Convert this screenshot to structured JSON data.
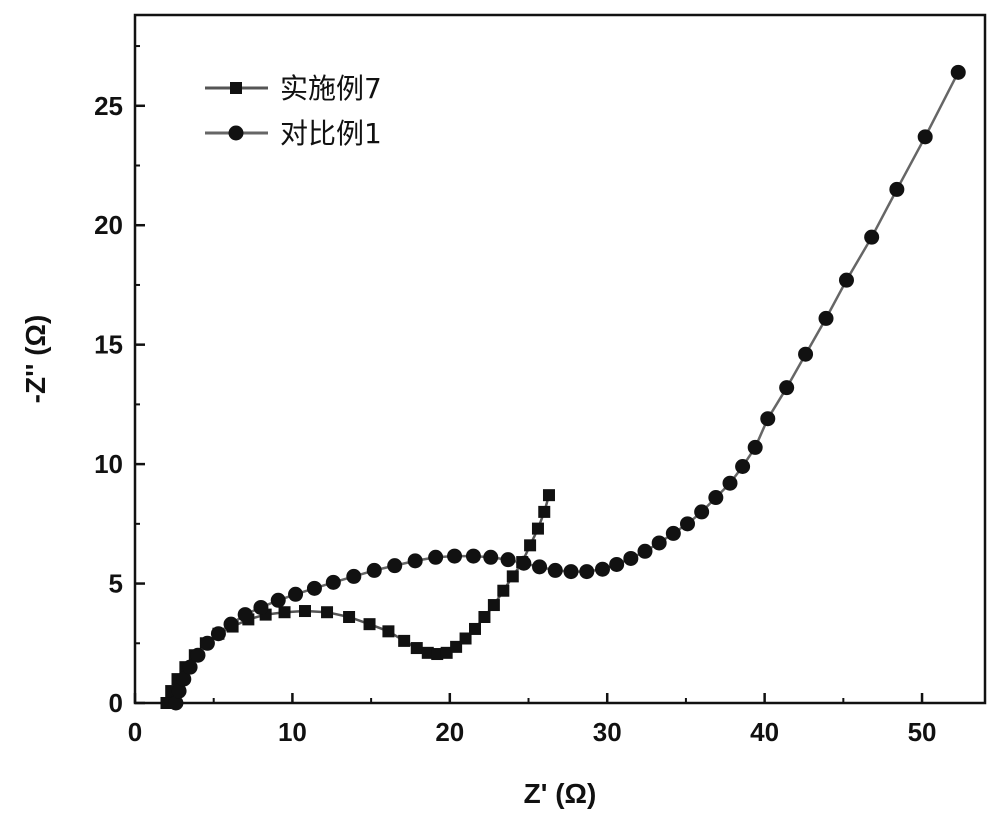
{
  "chart_data": {
    "type": "scatter",
    "xlabel": "Z' (Ω)",
    "ylabel": "-Z'' (Ω)",
    "xlim": [
      0,
      54
    ],
    "ylim": [
      0,
      28.8
    ],
    "xticks": [
      0,
      10,
      20,
      30,
      40,
      50
    ],
    "yticks": [
      0,
      5,
      10,
      15,
      20,
      25
    ],
    "grid": false,
    "legend_position": "top-left",
    "series": [
      {
        "name": "实施例7",
        "marker": "square",
        "color": "#111111",
        "line_color": "#555555",
        "x": [
          2.0,
          2.3,
          2.7,
          3.2,
          3.8,
          4.5,
          5.3,
          6.2,
          7.2,
          8.3,
          9.5,
          10.8,
          12.2,
          13.6,
          14.9,
          16.1,
          17.1,
          17.9,
          18.6,
          19.2,
          19.8,
          20.4,
          21.0,
          21.6,
          22.2,
          22.8,
          23.4,
          24.0,
          24.6,
          25.1,
          25.6,
          26.0,
          26.3
        ],
        "y": [
          0.0,
          0.5,
          1.0,
          1.5,
          2.0,
          2.5,
          2.9,
          3.2,
          3.5,
          3.7,
          3.8,
          3.85,
          3.8,
          3.6,
          3.3,
          3.0,
          2.6,
          2.3,
          2.1,
          2.05,
          2.1,
          2.35,
          2.7,
          3.1,
          3.6,
          4.1,
          4.7,
          5.3,
          5.9,
          6.6,
          7.3,
          8.0,
          8.7
        ]
      },
      {
        "name": "对比例1",
        "marker": "circle",
        "color": "#111111",
        "line_color": "#666666",
        "x": [
          2.6,
          2.8,
          3.1,
          3.5,
          4.0,
          4.6,
          5.3,
          6.1,
          7.0,
          8.0,
          9.1,
          10.2,
          11.4,
          12.6,
          13.9,
          15.2,
          16.5,
          17.8,
          19.1,
          20.3,
          21.5,
          22.6,
          23.7,
          24.7,
          25.7,
          26.7,
          27.7,
          28.7,
          29.7,
          30.6,
          31.5,
          32.4,
          33.3,
          34.2,
          35.1,
          36.0,
          36.9,
          37.8,
          38.6,
          39.4,
          40.2,
          41.4,
          42.6,
          43.9,
          45.2,
          46.8,
          48.4,
          50.2,
          52.3
        ],
        "y": [
          0.0,
          0.5,
          1.0,
          1.5,
          2.0,
          2.5,
          2.9,
          3.3,
          3.7,
          4.0,
          4.3,
          4.55,
          4.8,
          5.05,
          5.3,
          5.55,
          5.75,
          5.95,
          6.1,
          6.15,
          6.15,
          6.1,
          6.0,
          5.85,
          5.7,
          5.55,
          5.5,
          5.5,
          5.6,
          5.8,
          6.05,
          6.35,
          6.7,
          7.1,
          7.5,
          8.0,
          8.6,
          9.2,
          9.9,
          10.7,
          11.9,
          13.2,
          14.6,
          16.1,
          17.7,
          19.5,
          21.5,
          23.7,
          26.4
        ]
      }
    ]
  }
}
